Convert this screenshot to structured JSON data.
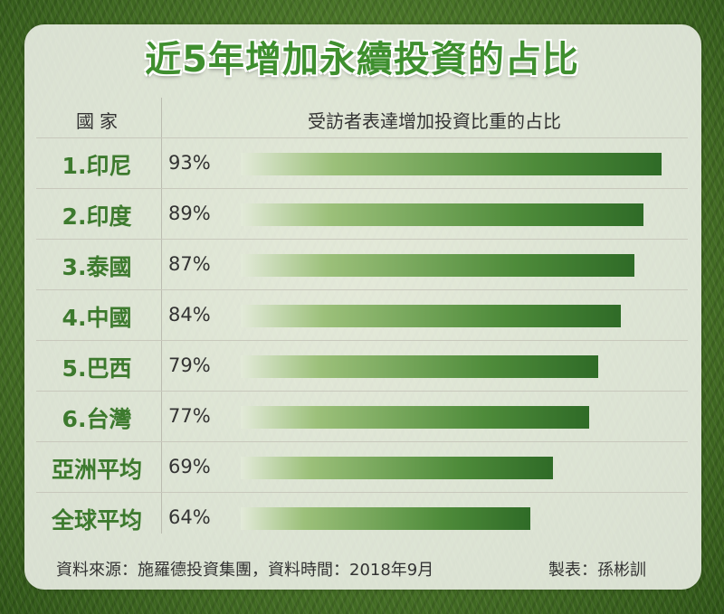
{
  "title": "近5年增加永續投資的占比",
  "header": {
    "country": "國家",
    "measure": "受訪者表達增加投資比重的占比"
  },
  "chart_data": {
    "type": "bar",
    "orientation": "horizontal",
    "categories": [
      "1.印尼",
      "2.印度",
      "3.泰國",
      "4.中國",
      "5.巴西",
      "6.台灣",
      "亞洲平均",
      "全球平均"
    ],
    "values": [
      93,
      89,
      87,
      84,
      79,
      77,
      69,
      64
    ],
    "value_labels": [
      "93%",
      "89%",
      "87%",
      "84%",
      "79%",
      "77%",
      "69%",
      "64%"
    ],
    "unit": "%",
    "xlim": [
      0,
      100
    ],
    "bar_color": "#3f7f30",
    "label_color": "#3d7a2e"
  },
  "footer": {
    "source": "資料來源：施羅德投資集團，資料時間：2018年9月",
    "author": "製表：孫彬訓"
  }
}
